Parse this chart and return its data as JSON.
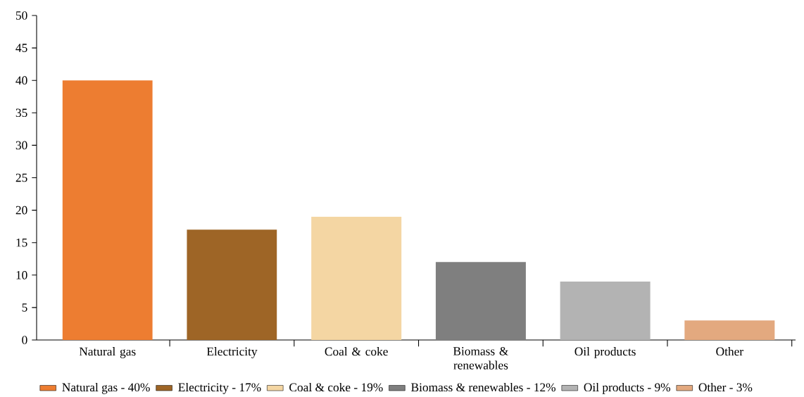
{
  "chart_data": {
    "type": "bar",
    "categories": [
      "Natural gas",
      "Electricity",
      "Coal & coke",
      "Biomass & renewables",
      "Oil products",
      "Other"
    ],
    "series": [
      {
        "name": "Natural gas - 40%",
        "color": "#ed7d31",
        "values": [
          40,
          null,
          null,
          null,
          null,
          null
        ]
      },
      {
        "name": "Electricity - 17%",
        "color": "#9e6526",
        "values": [
          null,
          17,
          null,
          null,
          null,
          null
        ]
      },
      {
        "name": "Coal & coke - 19%",
        "color": "#f4d6a3",
        "values": [
          null,
          null,
          19,
          null,
          null,
          null
        ]
      },
      {
        "name": "Biomass & renewables - 12%",
        "color": "#7f7f7f",
        "values": [
          null,
          null,
          null,
          12,
          null,
          null
        ]
      },
      {
        "name": "Oil products - 9%",
        "color": "#b3b3b3",
        "values": [
          null,
          null,
          null,
          null,
          9,
          null
        ]
      },
      {
        "name": "Other - 3%",
        "color": "#e3a97f",
        "values": [
          null,
          null,
          null,
          null,
          null,
          3
        ]
      }
    ],
    "ylim": [
      0,
      50
    ],
    "yticks": [
      0,
      5,
      10,
      15,
      20,
      25,
      30,
      35,
      40,
      45,
      50
    ],
    "legend": "bottom",
    "grid": false
  }
}
